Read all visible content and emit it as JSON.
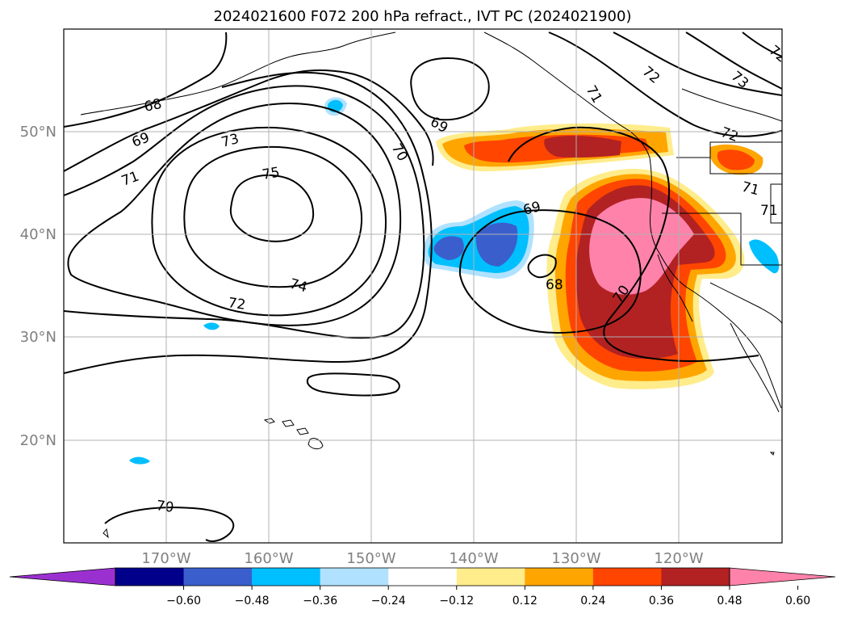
{
  "title": "2024021600 F072 200 hPa refract., IVT PC (2024021900)",
  "map": {
    "lon_labels": [
      "170°W",
      "160°W",
      "150°W",
      "140°W",
      "130°W",
      "120°W"
    ],
    "lat_labels": [
      "50°N",
      "40°N",
      "30°N",
      "20°N"
    ],
    "contour_labels": [
      "68",
      "69",
      "71",
      "73",
      "75",
      "74",
      "72",
      "70",
      "69",
      "69",
      "68",
      "70",
      "70",
      "71",
      "73",
      "72",
      "71",
      "71",
      "72",
      "72"
    ]
  },
  "colorbar": {
    "ticks": [
      "−0.60",
      "−0.48",
      "−0.36",
      "−0.24",
      "−0.12",
      "0.12",
      "0.24",
      "0.36",
      "0.48",
      "0.60"
    ],
    "colors": {
      "under": "#9b30d0",
      "bins": [
        "#00008b",
        "#3a5fcd",
        "#00bfff",
        "#b0e2ff",
        "#ffffff",
        "#ffec8b",
        "#ffa500",
        "#ff4500",
        "#b22222"
      ],
      "over": "#ff82ab"
    }
  }
}
